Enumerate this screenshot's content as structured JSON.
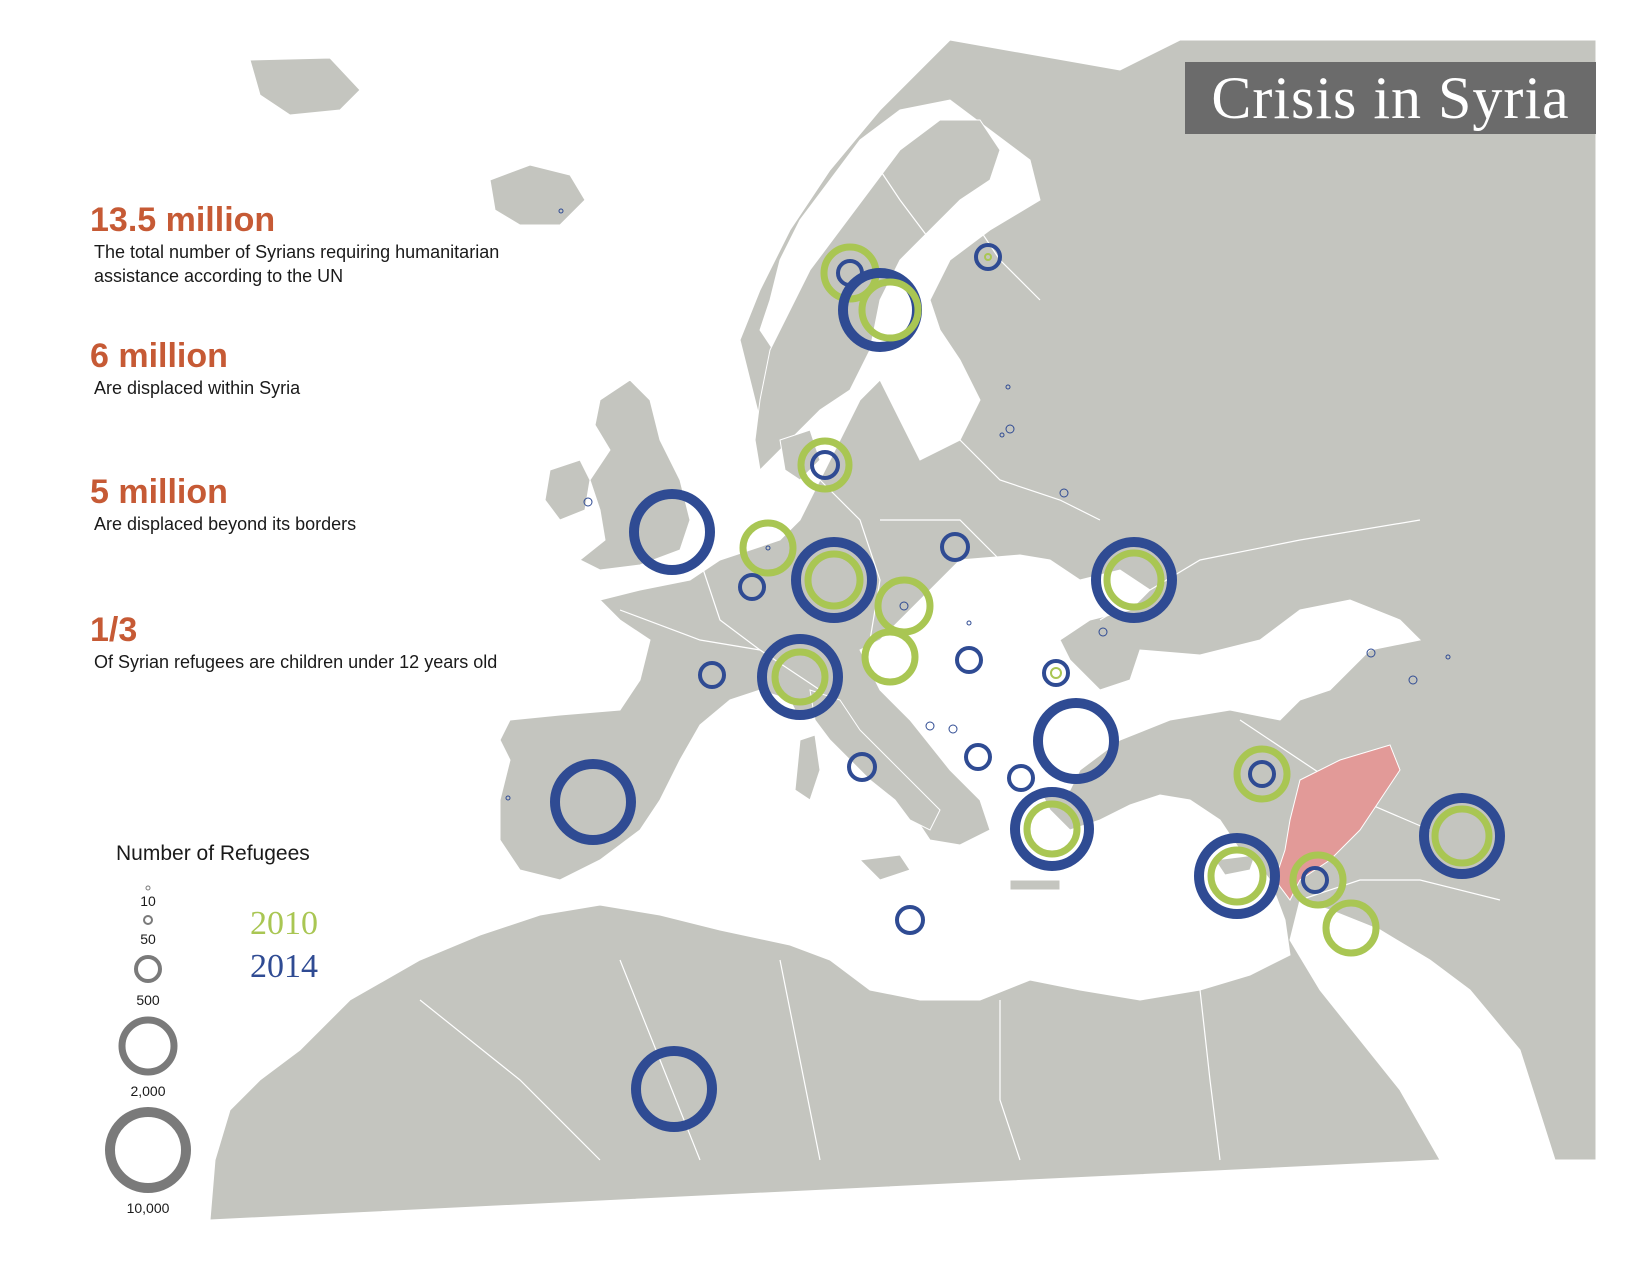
{
  "title": "Crisis in Syria",
  "colors": {
    "land": "#c4c5bf",
    "sea": "#ffffff",
    "border": "#ffffff",
    "syria": "#e29a98",
    "accent": "#c65a35",
    "y2010": "#a9c653",
    "y2014": "#2f4b93",
    "legend_ring": "#7a7a7a"
  },
  "stats": [
    {
      "value": "13.5 million",
      "description": "The total number of Syrians requiring humanitarian assistance according to the UN"
    },
    {
      "value": "6 million",
      "description": "Are displaced within Syria"
    },
    {
      "value": "5 million",
      "description": "Are displaced beyond its borders"
    },
    {
      "value": "1/3",
      "description": "Of Syrian refugees are children under 12 years old"
    }
  ],
  "legend": {
    "title": "Number of Refugees",
    "sizes": [
      "10",
      "50",
      "500",
      "2,000",
      "10,000"
    ],
    "series": [
      {
        "year": "2010",
        "color": "#a9c653"
      },
      {
        "year": "2014",
        "color": "#2f4b93"
      }
    ]
  }
}
